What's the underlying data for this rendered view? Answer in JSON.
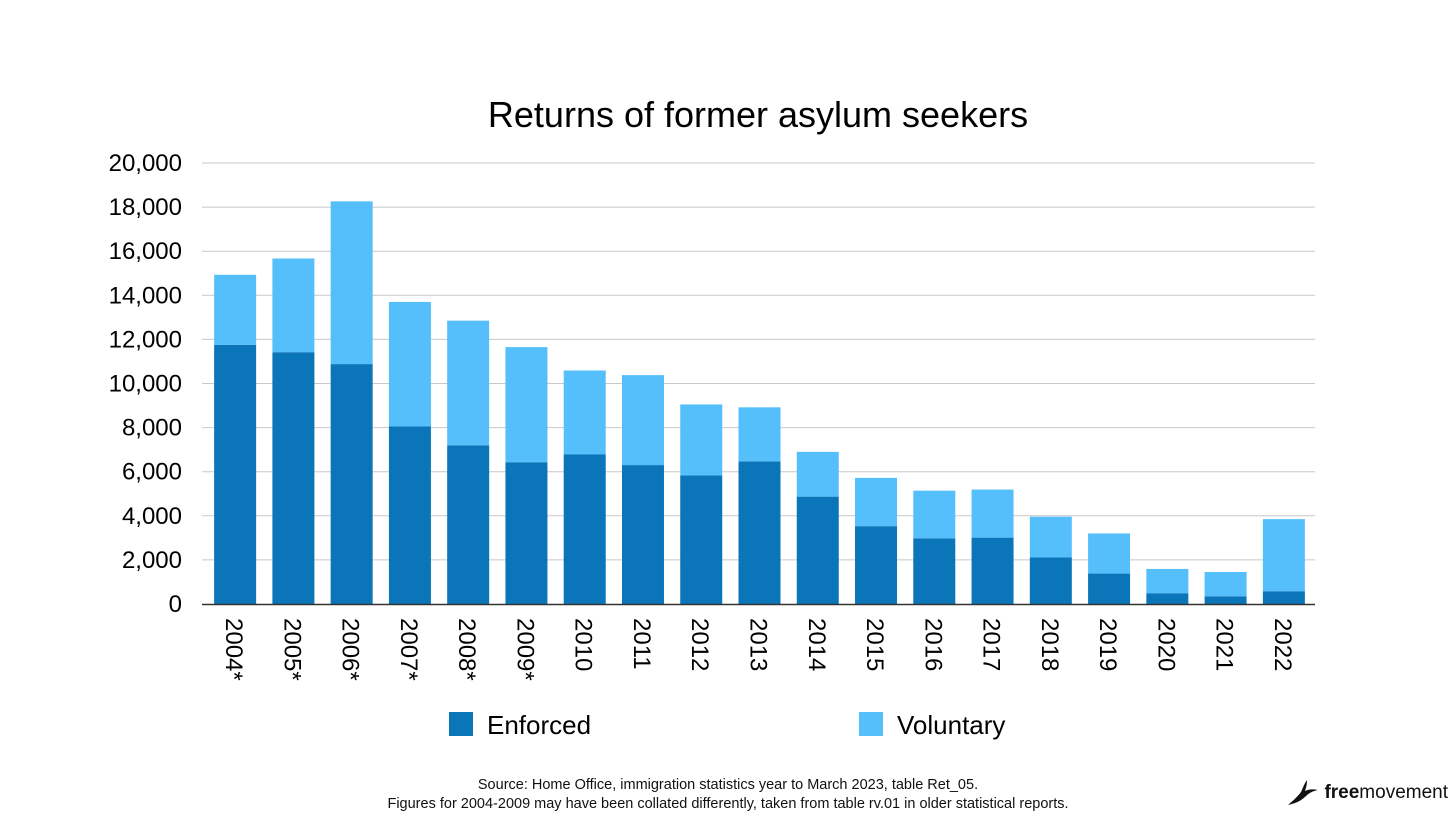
{
  "chart_data": {
    "type": "bar",
    "stacked": true,
    "title": "Returns of former asylum seekers",
    "categories": [
      "2004*",
      "2005*",
      "2006*",
      "2007*",
      "2008*",
      "2009*",
      "2010",
      "2011",
      "2012",
      "2013",
      "2014",
      "2015",
      "2016",
      "2017",
      "2018",
      "2019",
      "2020",
      "2021",
      "2022"
    ],
    "series": [
      {
        "name": "Enforced",
        "color": "#0a75b8",
        "values": [
          11750,
          11420,
          10880,
          8050,
          7200,
          6430,
          6780,
          6300,
          5830,
          6470,
          4870,
          3530,
          2980,
          3010,
          2110,
          1380,
          490,
          350,
          580
        ]
      },
      {
        "name": "Voluntary",
        "color": "#55bffb",
        "values": [
          3180,
          4250,
          7380,
          5650,
          5650,
          5220,
          3810,
          4080,
          3220,
          2450,
          2030,
          2190,
          2160,
          2180,
          1850,
          1820,
          1100,
          1100,
          3270
        ]
      }
    ],
    "ylim": [
      0,
      20000
    ],
    "yticks": [
      "0",
      "2,000",
      "4,000",
      "6,000",
      "8,000",
      "10,000",
      "12,000",
      "14,000",
      "16,000",
      "18,000",
      "20,000"
    ],
    "grid": true,
    "legend_position": "bottom"
  },
  "source_line_1": "Source: Home Office, immigration statistics year to March 2023, table Ret_05.",
  "source_line_2": "Figures for 2004-2009 may have been collated differently, taken from table rv.01 in older statistical reports.",
  "logo": {
    "bold": "free",
    "regular": "movement",
    "icon": "bird-icon",
    "color": "#111111"
  },
  "colors": {
    "grid": "#c8c8c8",
    "axis": "#333333"
  }
}
